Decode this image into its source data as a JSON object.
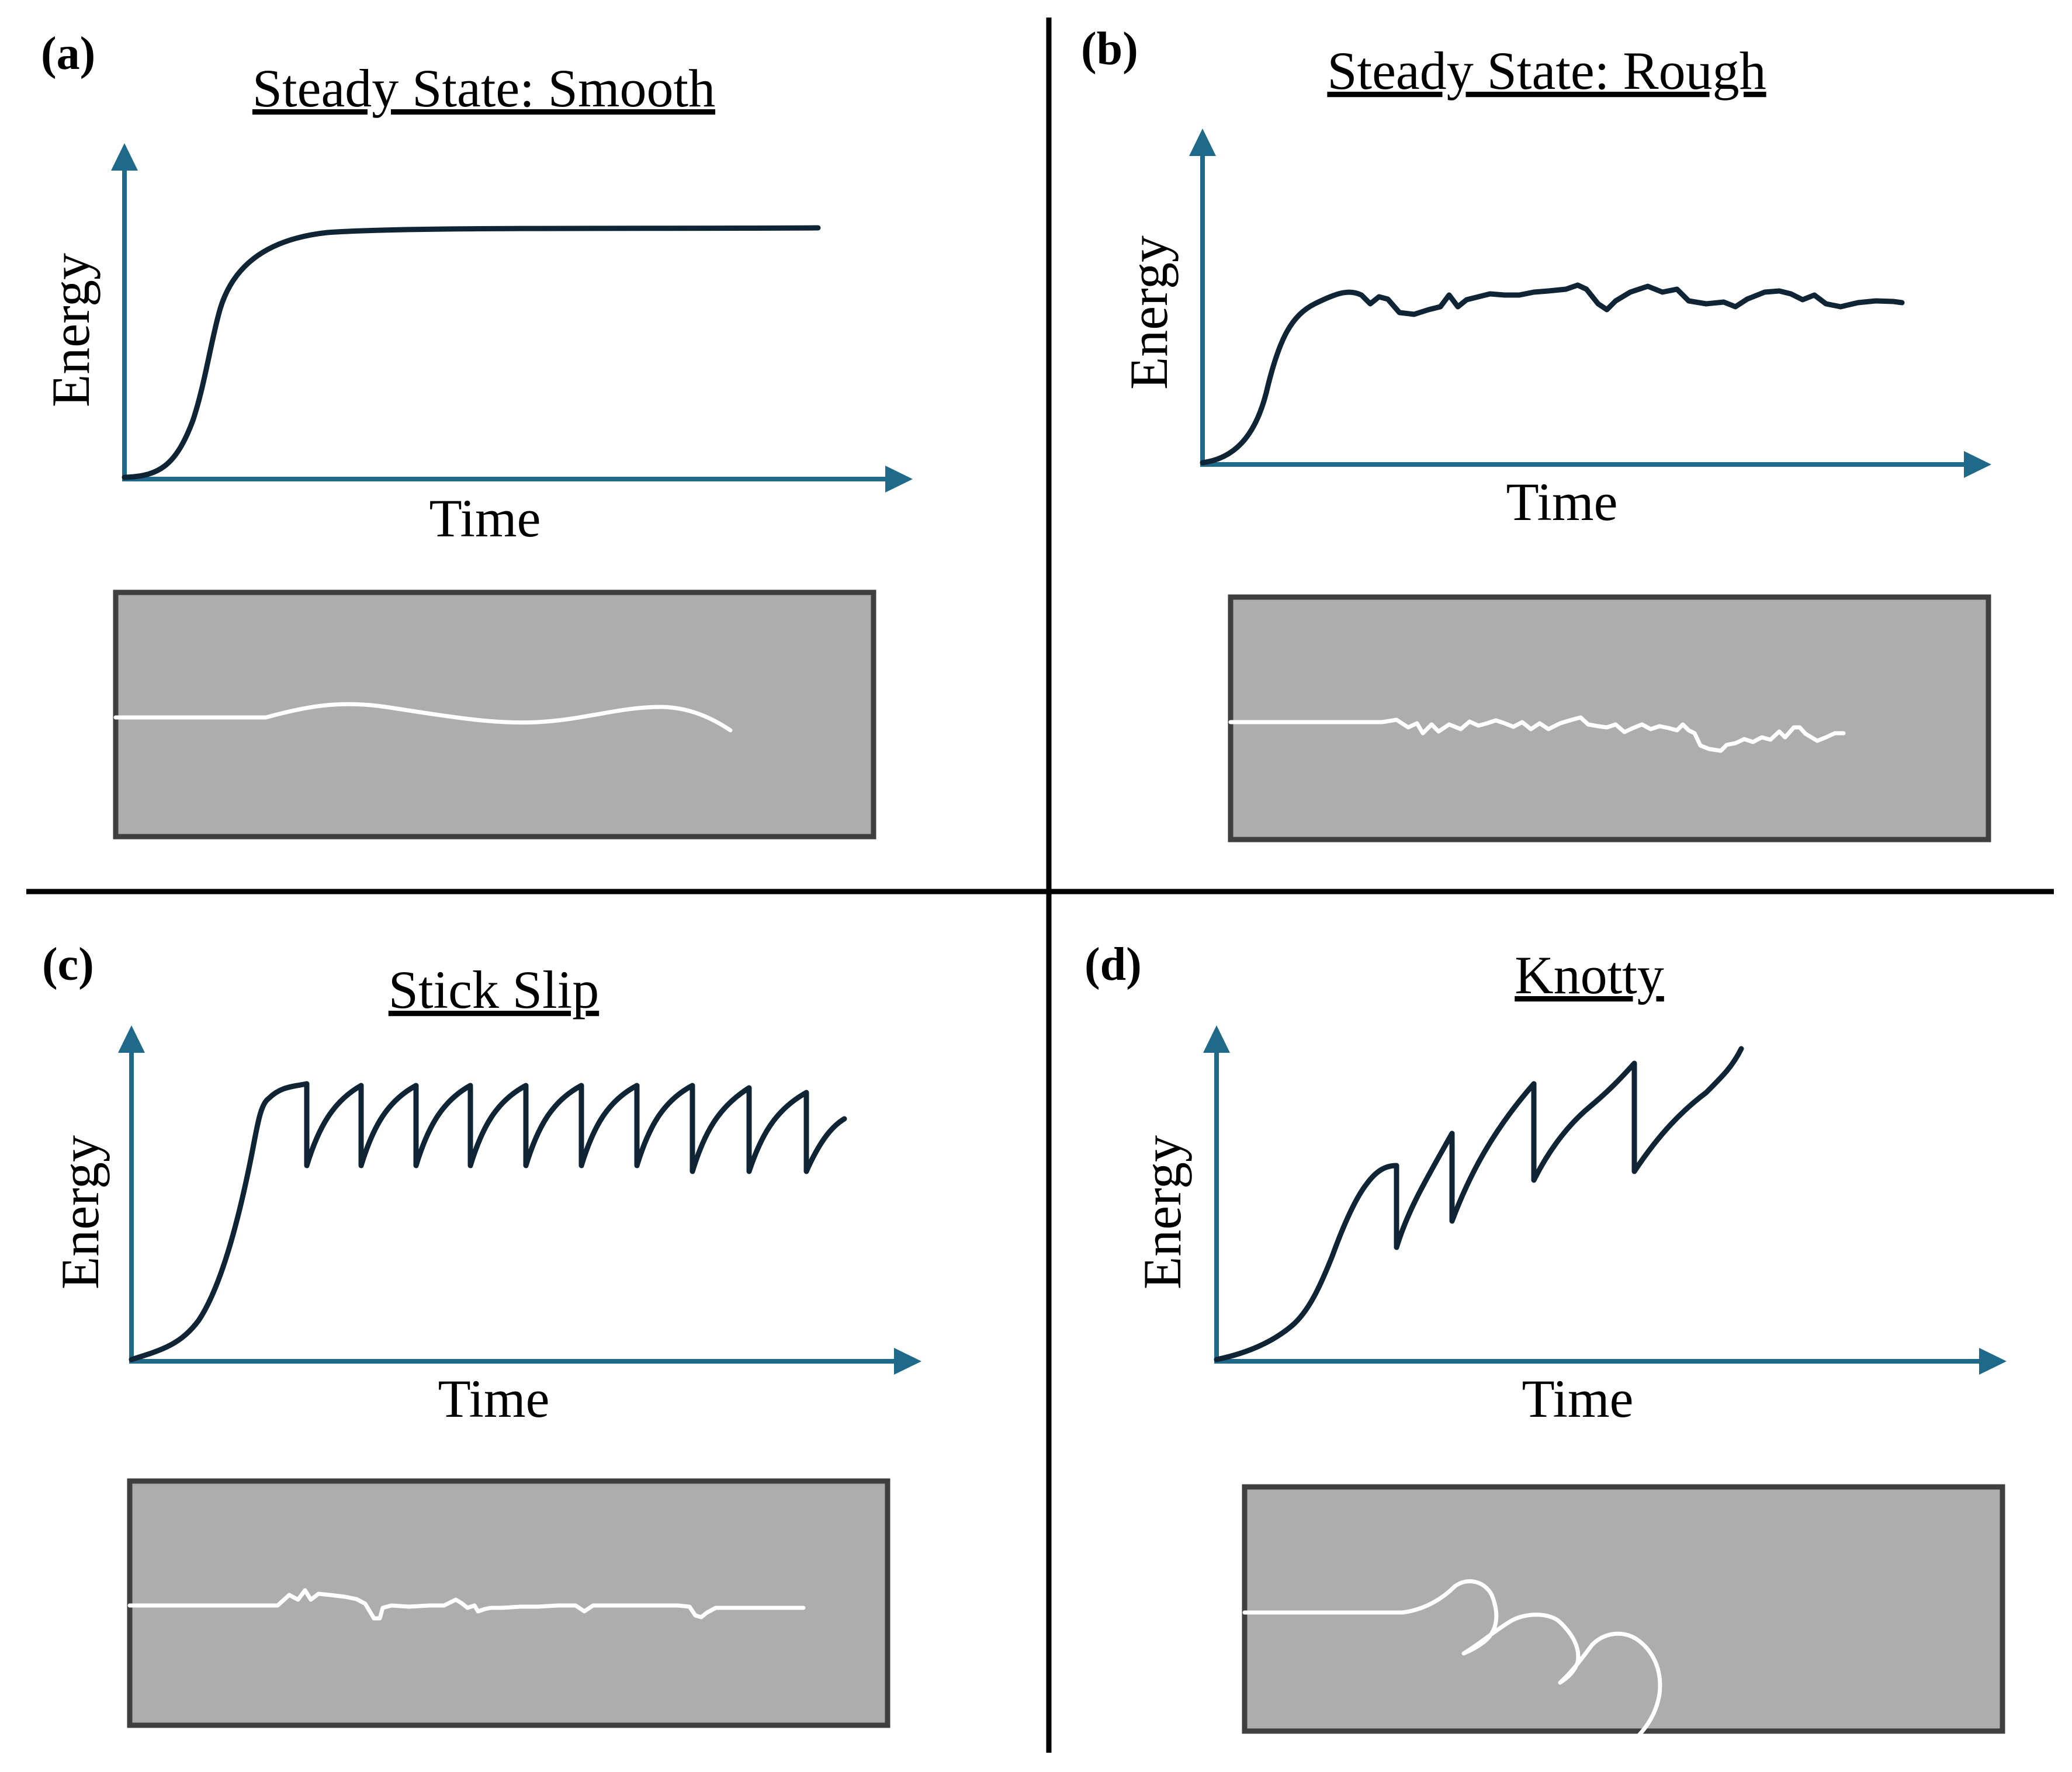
{
  "figure": {
    "panels": [
      {
        "id": "a",
        "label": "(a)",
        "title": "Steady State: Smooth",
        "xlabel": "Time",
        "ylabel": "Energy",
        "curve_behavior": "smooth",
        "crack_behavior": "smooth"
      },
      {
        "id": "b",
        "label": "(b)",
        "title": "Steady State: Rough",
        "xlabel": "Time",
        "ylabel": "Energy",
        "curve_behavior": "rough",
        "crack_behavior": "rough"
      },
      {
        "id": "c",
        "label": "(c)",
        "title": "Stick Slip",
        "xlabel": "Time",
        "ylabel": "Energy",
        "curve_behavior": "stick-slip",
        "crack_behavior": "stick-slip"
      },
      {
        "id": "d",
        "label": "(d)",
        "title": "Knotty",
        "xlabel": "Time",
        "ylabel": "Energy",
        "curve_behavior": "knotty",
        "crack_behavior": "knotty"
      }
    ],
    "colors": {
      "axis": "#1f6a8a",
      "curve": "#0f2535",
      "specimen_fill": "#adadad",
      "specimen_border": "#3f3f3f",
      "crack": "#ffffff",
      "divider": "#000000"
    }
  }
}
